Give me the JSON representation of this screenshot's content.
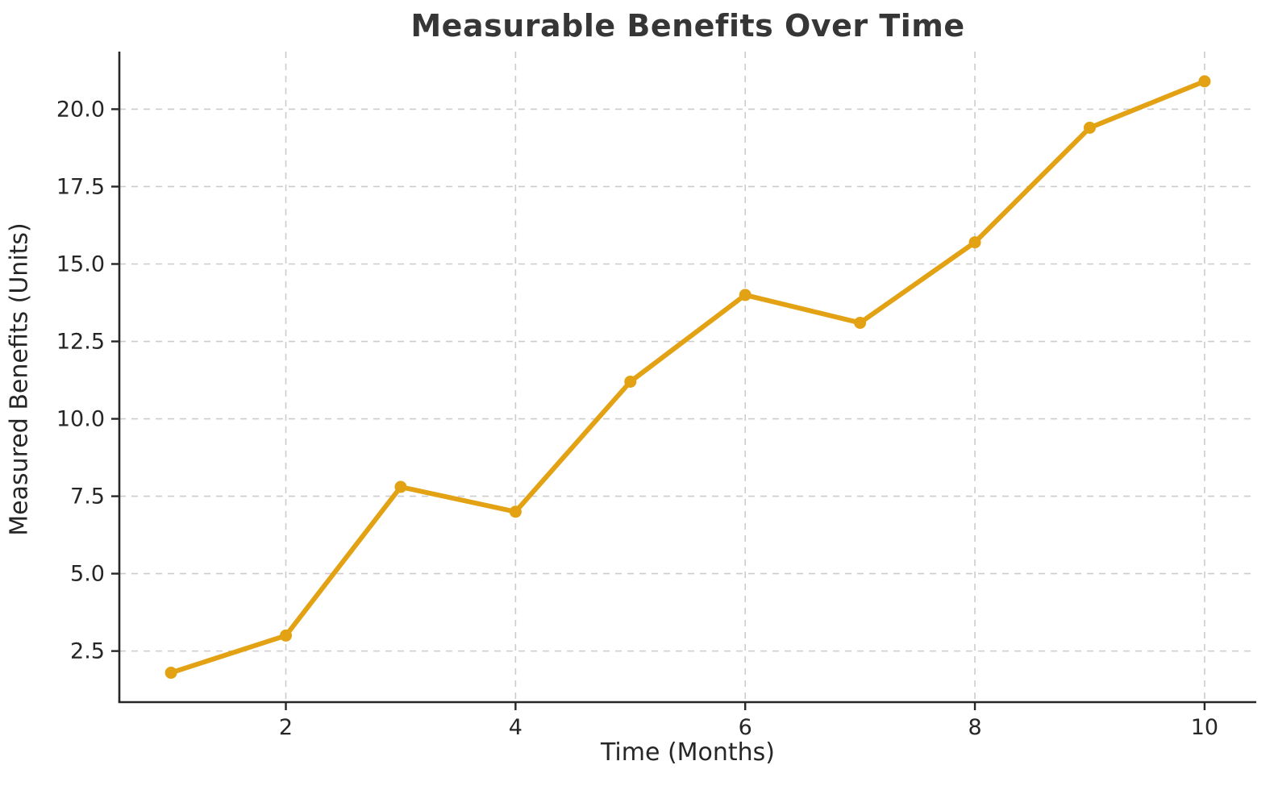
{
  "chart_data": {
    "type": "line",
    "title": "Measurable Benefits Over Time",
    "xlabel": "Time (Months)",
    "ylabel": "Measured Benefits (Units)",
    "x": [
      1,
      2,
      3,
      4,
      5,
      6,
      7,
      8,
      9,
      10
    ],
    "values": [
      1.8,
      3.0,
      7.8,
      7.0,
      11.2,
      14.0,
      13.1,
      15.7,
      19.4,
      20.9
    ],
    "series_name": "Measured Benefits",
    "xlim": [
      0.55,
      10.45
    ],
    "ylim": [
      0.85,
      21.86
    ],
    "xticks": [
      2,
      4,
      6,
      8,
      10
    ],
    "xtick_labels": [
      "2",
      "4",
      "6",
      "8",
      "10"
    ],
    "yticks": [
      2.5,
      5.0,
      7.5,
      10.0,
      12.5,
      15.0,
      17.5,
      20.0
    ],
    "ytick_labels": [
      "2.5",
      "5.0",
      "7.5",
      "10.0",
      "12.5",
      "15.0",
      "17.5",
      "20.0"
    ],
    "grid": true,
    "grid_style": "dashed",
    "legend": false,
    "colors": {
      "line": "#E2A213",
      "marker": "#E2A213",
      "grid": "#CCCCCC",
      "axis": "#262626",
      "tick_label": "#262626",
      "title": "#363636",
      "background": "#FFFFFF"
    }
  }
}
